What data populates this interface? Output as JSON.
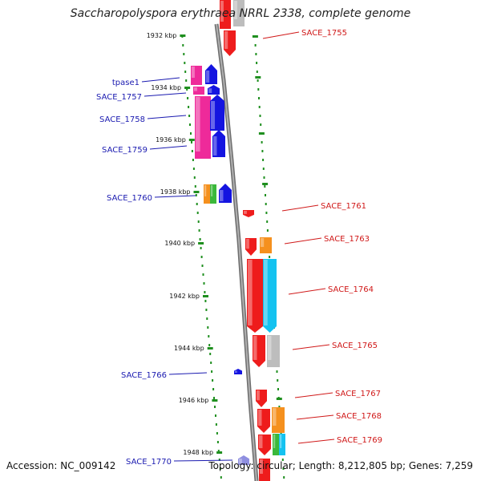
{
  "title": "Saccharopolyspora erythraea NRRL 2338, complete genome",
  "footer": {
    "accession": "Accession: NC_009142",
    "topology": "Topology: circular; Length: 8,212,805 bp; Genes: 7,259"
  },
  "colors": {
    "backbone": "#8a8a8a",
    "tick": "#1f8f1f",
    "left_label": "#1a1ab0",
    "right_label": "#d01818",
    "red": "#ee1c1c",
    "orange": "#f5901e",
    "gray": "#bdbdbd",
    "cyan": "#14c2f0",
    "green": "#3bb83b",
    "pink": "#ee2a9a",
    "blue": "#1414e0"
  },
  "kbp_labels": [
    "1932 kbp",
    "1934 kbp",
    "1936 kbp",
    "1938 kbp",
    "1940 kbp",
    "1942 kbp",
    "1944 kbp",
    "1946 kbp",
    "1948 kbp"
  ],
  "left_labels": [
    "tpase1",
    "SACE_1757",
    "SACE_1758",
    "SACE_1759",
    "SACE_1760",
    "SACE_1766",
    "SACE_1770"
  ],
  "right_labels": [
    "SACE_1755",
    "SACE_1761",
    "SACE_1763",
    "SACE_1764",
    "SACE_1765",
    "SACE_1767",
    "SACE_1768",
    "SACE_1769"
  ]
}
